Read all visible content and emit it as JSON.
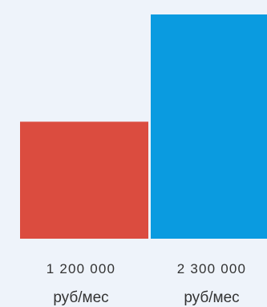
{
  "chart_data": {
    "type": "bar",
    "categories": [
      "1 200 000",
      "2 300 000"
    ],
    "units": [
      "руб/мес",
      "руб/мес"
    ],
    "values": [
      1200000,
      2300000
    ],
    "colors": [
      "#db4c3f",
      "#0a9be0"
    ],
    "title": "",
    "xlabel": "",
    "ylabel": "",
    "ylim": [
      0,
      2300000
    ],
    "grid": false,
    "legend": "none"
  }
}
